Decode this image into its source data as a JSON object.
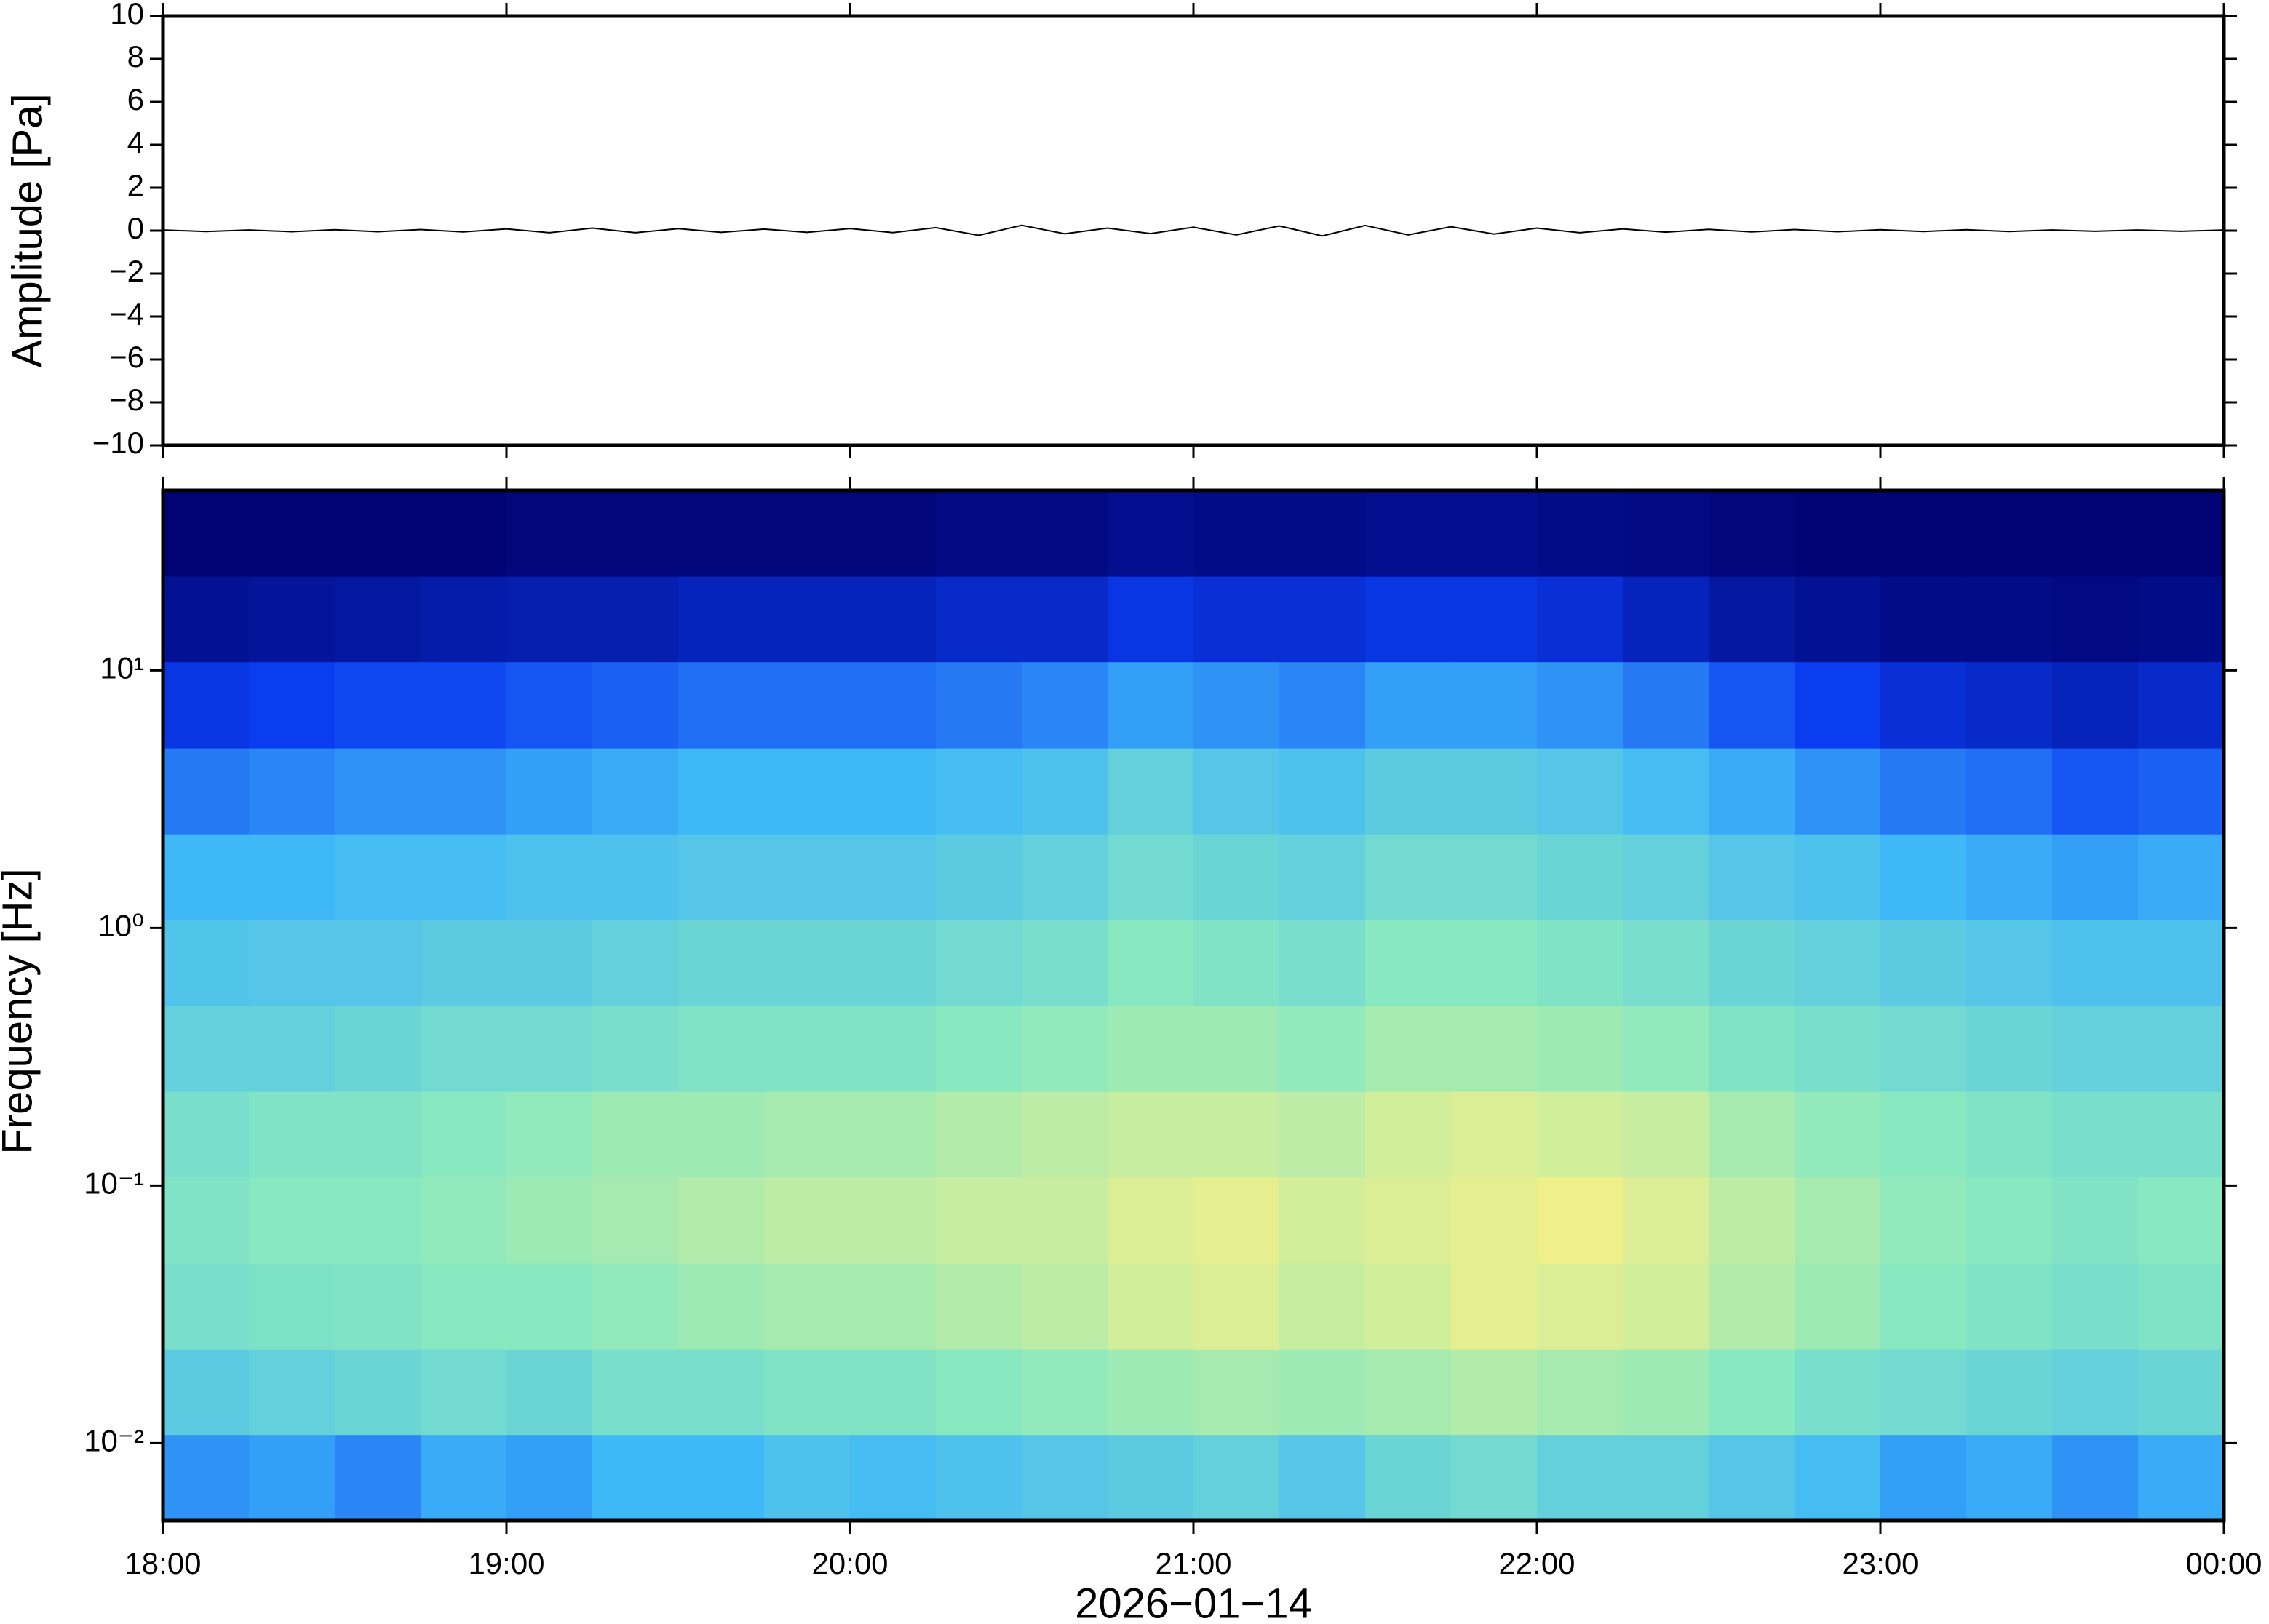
{
  "chart_data": [
    {
      "type": "line",
      "ylabel": "Amplitude [Pa]",
      "color": "#000000",
      "xlim": [
        18,
        24
      ],
      "xticks": [
        18,
        19,
        20,
        21,
        22,
        23,
        24
      ],
      "ylim": [
        -10,
        10
      ],
      "yticks": [
        {
          "value": -10,
          "label": "−10"
        },
        {
          "value": -8,
          "label": "−8"
        },
        {
          "value": -6,
          "label": "−6"
        },
        {
          "value": -4,
          "label": "−4"
        },
        {
          "value": -2,
          "label": "−2"
        },
        0,
        2,
        4,
        6,
        8,
        10
      ],
      "x": [
        18,
        18.125,
        18.25,
        18.375,
        18.5,
        18.625,
        18.75,
        18.875,
        19,
        19.125,
        19.25,
        19.375,
        19.5,
        19.625,
        19.75,
        19.875,
        20,
        20.125,
        20.25,
        20.375,
        20.5,
        20.625,
        20.75,
        20.875,
        21,
        21.125,
        21.25,
        21.375,
        21.5,
        21.625,
        21.75,
        21.875,
        22,
        22.125,
        22.25,
        22.375,
        22.5,
        22.625,
        22.75,
        22.875,
        23,
        23.125,
        23.25,
        23.375,
        23.5,
        23.625,
        23.75,
        23.875,
        24
      ],
      "values": [
        0.03,
        -0.04,
        0.03,
        -0.05,
        0.04,
        -0.05,
        0.05,
        -0.06,
        0.08,
        -0.1,
        0.12,
        -0.1,
        0.09,
        -0.08,
        0.07,
        -0.08,
        0.1,
        -0.09,
        0.14,
        -0.22,
        0.25,
        -0.15,
        0.12,
        -0.14,
        0.16,
        -0.2,
        0.22,
        -0.25,
        0.24,
        -0.2,
        0.18,
        -0.16,
        0.12,
        -0.1,
        0.08,
        -0.07,
        0.06,
        -0.06,
        0.05,
        -0.05,
        0.04,
        -0.04,
        0.04,
        -0.04,
        0.03,
        -0.03,
        0.03,
        -0.03,
        0.03
      ]
    },
    {
      "type": "heatmap",
      "ylabel": "Frequency [Hz]",
      "xlabel": "2026−01−14",
      "xlim": [
        18,
        24
      ],
      "xticks": [
        {
          "value": 18,
          "label": "18:00"
        },
        {
          "value": 19,
          "label": "19:00"
        },
        {
          "value": 20,
          "label": "20:00"
        },
        {
          "value": 21,
          "label": "21:00"
        },
        {
          "value": 22,
          "label": "22:00"
        },
        {
          "value": 23,
          "label": "23:00"
        },
        {
          "value": 24,
          "label": "00:00"
        }
      ],
      "ylim": [
        0.005,
        50
      ],
      "log_y": true,
      "yticks": [
        {
          "value": 0.01,
          "label": "10⁻²"
        },
        {
          "value": 0.1,
          "label": "10⁻¹"
        },
        {
          "value": 1,
          "label": "10⁰"
        },
        {
          "value": 10,
          "label": "10¹"
        }
      ],
      "zlim": [
        0,
        100
      ],
      "colors": [
        "#00006e",
        "#0a3cf0",
        "#3fb8f8",
        "#88e8c0",
        "#f0f08a",
        "#f07838"
      ],
      "xbins": [
        18,
        18.25,
        18.5,
        18.75,
        19,
        19.25,
        19.5,
        19.75,
        20,
        20.25,
        20.5,
        20.75,
        21,
        21.25,
        21.5,
        21.75,
        22,
        22.25,
        22.5,
        22.75,
        23,
        23.25,
        23.5,
        23.75,
        24
      ],
      "ybins": [
        0.005,
        0.0108,
        0.0232,
        0.05,
        0.108,
        0.232,
        0.5,
        1.08,
        2.32,
        5,
        10.8,
        23.2,
        50
      ],
      "z": [
        [
          34,
          36,
          32,
          38,
          36,
          40,
          40,
          44,
          42,
          44,
          46,
          48,
          50,
          46,
          52,
          54,
          50,
          50,
          46,
          42,
          36,
          38,
          34,
          38
        ],
        [
          48,
          50,
          52,
          54,
          52,
          56,
          56,
          58,
          58,
          60,
          62,
          64,
          66,
          64,
          66,
          68,
          66,
          64,
          60,
          56,
          54,
          52,
          50,
          52
        ],
        [
          56,
          57,
          58,
          60,
          60,
          62,
          64,
          66,
          66,
          68,
          70,
          74,
          76,
          72,
          74,
          78,
          76,
          74,
          68,
          64,
          60,
          58,
          56,
          58
        ],
        [
          58,
          60,
          60,
          62,
          64,
          66,
          68,
          70,
          70,
          72,
          72,
          76,
          78,
          74,
          76,
          78,
          80,
          76,
          70,
          66,
          62,
          60,
          58,
          60
        ],
        [
          56,
          58,
          58,
          60,
          62,
          64,
          64,
          66,
          66,
          68,
          70,
          72,
          72,
          70,
          74,
          76,
          74,
          72,
          66,
          62,
          60,
          58,
          56,
          56
        ],
        [
          50,
          50,
          52,
          54,
          54,
          56,
          58,
          58,
          58,
          60,
          62,
          64,
          64,
          62,
          66,
          66,
          64,
          62,
          58,
          56,
          54,
          52,
          50,
          50
        ],
        [
          45,
          46,
          46,
          48,
          48,
          50,
          52,
          52,
          52,
          54,
          56,
          60,
          58,
          56,
          60,
          60,
          58,
          56,
          52,
          50,
          48,
          46,
          44,
          44
        ],
        [
          40,
          40,
          42,
          42,
          44,
          44,
          46,
          46,
          46,
          48,
          50,
          54,
          52,
          50,
          54,
          54,
          52,
          50,
          46,
          44,
          40,
          38,
          36,
          38
        ],
        [
          30,
          32,
          34,
          34,
          36,
          38,
          40,
          40,
          40,
          42,
          44,
          50,
          46,
          44,
          48,
          48,
          46,
          42,
          38,
          34,
          30,
          28,
          24,
          26
        ],
        [
          18,
          20,
          22,
          22,
          24,
          26,
          28,
          28,
          28,
          30,
          32,
          36,
          34,
          32,
          36,
          36,
          34,
          30,
          24,
          20,
          16,
          14,
          12,
          14
        ],
        [
          6,
          7,
          8,
          9,
          10,
          10,
          12,
          12,
          12,
          14,
          14,
          18,
          16,
          16,
          18,
          18,
          16,
          12,
          8,
          6,
          4,
          4,
          3,
          4
        ],
        [
          1,
          1,
          1,
          1,
          2,
          2,
          2,
          2,
          2,
          3,
          3,
          5,
          4,
          4,
          5,
          5,
          4,
          3,
          2,
          1,
          1,
          1,
          1,
          1
        ]
      ]
    }
  ]
}
